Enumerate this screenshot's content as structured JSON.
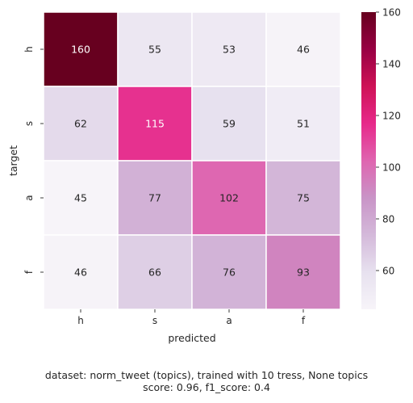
{
  "chart_data": {
    "type": "heatmap",
    "xlabel": "predicted",
    "ylabel": "target",
    "x_categories": [
      "h",
      "s",
      "a",
      "f"
    ],
    "y_categories": [
      "h",
      "s",
      "a",
      "f"
    ],
    "values": [
      [
        160,
        55,
        53,
        46
      ],
      [
        62,
        115,
        59,
        51
      ],
      [
        45,
        77,
        102,
        75
      ],
      [
        46,
        66,
        76,
        93
      ]
    ],
    "colorbar": {
      "vmin": 45,
      "vmax": 160,
      "ticks": [
        60,
        80,
        100,
        120,
        140,
        160
      ],
      "colormap_stops": [
        "#f7f4f9",
        "#e7e1ef",
        "#d4b9da",
        "#c994c7",
        "#df65b0",
        "#e7298a",
        "#ce1256",
        "#980043",
        "#67001f"
      ]
    },
    "grid": false,
    "legend": "none"
  },
  "caption": {
    "line1": "dataset: norm_tweet (topics), trained with 10 tress, None topics",
    "line2": "score: 0.96, f1_score: 0.4"
  }
}
